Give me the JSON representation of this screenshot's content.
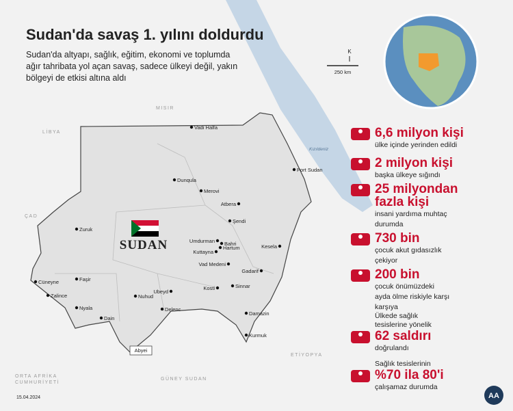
{
  "header": {
    "title": "Sudan'da savaş 1. yılını doldurdu",
    "subtitle_lines": [
      "Sudan'da altyapı, sağlık, eğitim, ekonomi ve toplumda",
      "ağır tahribata yol açan savaş, sadece ülkeyi değil, yakın",
      "bölgeyi de etkisi altına aldı"
    ]
  },
  "map": {
    "compass": "K",
    "scale": "250 km",
    "country_label": "SUDAN",
    "sea": "Kızıldeniz",
    "neighbors": [
      "MISIR",
      "LİBYA",
      "ÇAD",
      "ORTA AFRİKA",
      "CUMHURİYETİ",
      "GÜNEY SUDAN",
      "ETİYOPYA"
    ],
    "cities": [
      "Vadi Halfa",
      "Port Sudan",
      "Dunqula",
      "Merovi",
      "Atbera",
      "Şendi",
      "Zuruk",
      "Umdurman",
      "Bahri",
      "Hartum",
      "Kuttayna",
      "Kesela",
      "Vad Medeni",
      "Gadarif",
      "Cüneyne",
      "Faşir",
      "Zalince",
      "Ubeyd",
      "Kosti",
      "Sinnar",
      "Nuhud",
      "Nyala",
      "Delenc",
      "Dain",
      "Damazin",
      "Kurmuk",
      "Abyei"
    ]
  },
  "stats": [
    {
      "headline_lines": [
        "6,6 milyon kişi"
      ],
      "description_lines": [
        "ülke içinde yerinden edildi"
      ]
    },
    {
      "headline_lines": [
        "2 milyon kişi"
      ],
      "description_lines": [
        "başka ülkeye sığındı"
      ]
    },
    {
      "headline_lines": [
        "25 milyondan",
        "fazla kişi"
      ],
      "description_lines": [
        "insani yardıma muhtaç",
        "durumda"
      ]
    },
    {
      "headline_lines": [
        "730 bin"
      ],
      "description_lines": [
        "çocuk akut gıdasızlık",
        "çekiyor"
      ]
    },
    {
      "headline_lines": [
        "200 bin"
      ],
      "description_lines": [
        "çocuk önümüzdeki",
        "ayda ölme riskiyle karşı",
        "karşıya"
      ]
    },
    {
      "pre_lines": [
        "Ülkede sağlık",
        "tesislerine yönelik"
      ],
      "headline_lines": [
        "62 saldırı"
      ],
      "description_lines": [
        "doğrulandı"
      ]
    },
    {
      "pre_lines": [
        "Sağlık tesislerinin"
      ],
      "headline_lines": [
        "%70 ila 80'i"
      ],
      "description_lines": [
        "çalışamaz durumda"
      ]
    }
  ],
  "footer": {
    "date": "15.04.2024",
    "logo": "AA"
  }
}
